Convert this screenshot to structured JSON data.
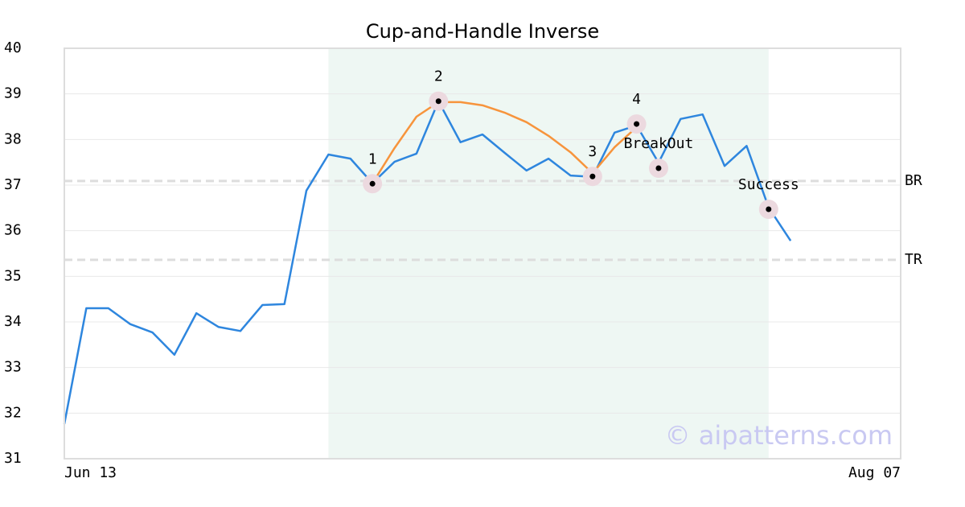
{
  "chart_data": {
    "type": "line",
    "title": "Cup-and-Handle Inverse",
    "xlim": [
      0,
      38
    ],
    "xticks": [
      {
        "value": 0,
        "label": "Jun 13"
      },
      {
        "value": 38,
        "label": "Aug 07"
      }
    ],
    "ylim": [
      31,
      40
    ],
    "yticks": [
      31,
      32,
      33,
      34,
      35,
      36,
      37,
      38,
      39,
      40
    ],
    "grid": true,
    "shade": [
      12,
      32
    ],
    "shade_color": "#eef7f3",
    "series": [
      {
        "color": "#2e86de",
        "x": [
          0,
          1,
          2,
          3,
          4,
          5,
          6,
          7,
          8,
          9,
          10,
          11,
          12,
          13,
          14,
          15,
          16,
          17,
          18,
          19,
          20,
          21,
          22,
          23,
          24,
          25,
          26,
          27,
          28,
          29,
          30,
          31,
          32,
          33
        ],
        "values": [
          31.76,
          34.3,
          34.3,
          33.95,
          33.77,
          33.28,
          34.19,
          33.89,
          33.8,
          34.37,
          34.39,
          36.88,
          37.67,
          37.58,
          37.04,
          37.51,
          37.69,
          38.84,
          37.94,
          38.11,
          37.71,
          37.32,
          37.58,
          37.21,
          37.18,
          38.15,
          38.31,
          37.49,
          38.45,
          38.55,
          37.42,
          37.86,
          36.51,
          35.78
        ]
      },
      {
        "color": "#f7943c",
        "x": [
          14,
          15,
          16,
          17,
          18,
          19,
          20,
          21,
          22,
          23,
          24,
          25,
          26
        ],
        "values": [
          37.04,
          37.81,
          38.5,
          38.82,
          38.82,
          38.75,
          38.59,
          38.38,
          38.08,
          37.72,
          37.26,
          37.83,
          38.27
        ]
      }
    ],
    "levels": [
      {
        "name": "BR",
        "value": 37.09
      },
      {
        "name": "TR",
        "value": 35.36
      }
    ],
    "points": [
      {
        "label": "1",
        "x": 14,
        "y": 37.03
      },
      {
        "label": "2",
        "x": 17,
        "y": 38.84
      },
      {
        "label": "3",
        "x": 24,
        "y": 37.19
      },
      {
        "label": "4",
        "x": 26,
        "y": 38.34
      },
      {
        "label": "BreakOut",
        "x": 27,
        "y": 37.37
      },
      {
        "label": "Success",
        "x": 32,
        "y": 36.47
      }
    ],
    "watermark": "© aipatterns.com"
  }
}
